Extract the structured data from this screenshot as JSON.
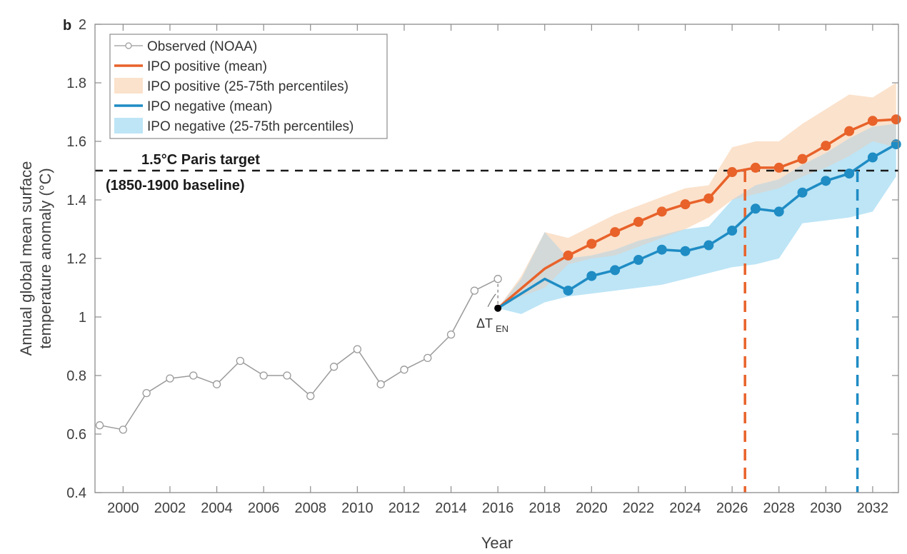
{
  "chart_data": {
    "type": "line",
    "panel_label": "b",
    "title": "",
    "xlabel": "Year",
    "ylabel_line1": "Annual global mean surface",
    "ylabel_line2": "temperature anomaly (°C)",
    "xlim": [
      1998.8,
      2033.1
    ],
    "ylim": [
      0.4,
      2.0
    ],
    "grid": false,
    "x_ticks": [
      2000,
      2002,
      2004,
      2006,
      2008,
      2010,
      2012,
      2014,
      2016,
      2018,
      2020,
      2022,
      2024,
      2026,
      2028,
      2030,
      2032
    ],
    "x_tick_labels": [
      "2000",
      "2002",
      "2004",
      "2006",
      "2008",
      "2010",
      "2012",
      "2014",
      "2016",
      "2018",
      "2020",
      "2022",
      "2024",
      "2026",
      "2028",
      "2030",
      "2032"
    ],
    "y_ticks": [
      0.4,
      0.6,
      0.8,
      1.0,
      1.2,
      1.4,
      1.6,
      1.8,
      2.0
    ],
    "y_tick_labels": [
      "0.4",
      "0.6",
      "0.8",
      "1",
      "1.2",
      "1.4",
      "1.6",
      "1.8",
      "2"
    ],
    "legend_position": "top-left",
    "legend": [
      {
        "label": "Observed (NOAA)",
        "kind": "line-marker",
        "color": "#9a9a9a"
      },
      {
        "label": "IPO positive (mean)",
        "kind": "line",
        "color": "#e8622a"
      },
      {
        "label": "IPO positive (25-75th percentiles)",
        "kind": "patch",
        "color": "#fbe2cc"
      },
      {
        "label": "IPO negative (mean)",
        "kind": "line",
        "color": "#1f8cc4"
      },
      {
        "label": "IPO negative (25-75th percentiles)",
        "kind": "patch",
        "color": "#bde5f6"
      }
    ],
    "colors": {
      "observed": "#9a9a9a",
      "positive_mean": "#e8622a",
      "positive_band": "#fbe2cc",
      "negative_mean": "#1f8cc4",
      "negative_band": "#bde5f6",
      "overlap_band": "#d5d7d5",
      "target_line": "#1a1a1a"
    },
    "observed": {
      "name": "Observed (NOAA)",
      "x": [
        1999,
        2000,
        2001,
        2002,
        2003,
        2004,
        2005,
        2006,
        2007,
        2008,
        2009,
        2010,
        2011,
        2012,
        2013,
        2014,
        2015,
        2016
      ],
      "y": [
        0.63,
        0.615,
        0.74,
        0.79,
        0.8,
        0.77,
        0.85,
        0.8,
        0.8,
        0.73,
        0.83,
        0.89,
        0.77,
        0.82,
        0.86,
        0.94,
        1.09,
        1.13
      ]
    },
    "start_point": {
      "x": 2016,
      "y": 1.03,
      "label": "ΔT",
      "label_sub": "EN"
    },
    "series": [
      {
        "name": "IPO positive (mean)",
        "x": [
          2016,
          2018,
          2019,
          2020,
          2021,
          2022,
          2023,
          2024,
          2025,
          2026,
          2027,
          2028,
          2029,
          2030,
          2031,
          2032,
          2033
        ],
        "y": [
          1.03,
          1.165,
          1.21,
          1.25,
          1.29,
          1.325,
          1.36,
          1.385,
          1.405,
          1.495,
          1.51,
          1.51,
          1.54,
          1.585,
          1.635,
          1.67,
          1.675
        ],
        "markers_from": 2019
      },
      {
        "name": "IPO negative (mean)",
        "x": [
          2016,
          2018,
          2019,
          2020,
          2021,
          2022,
          2023,
          2024,
          2025,
          2026,
          2027,
          2028,
          2029,
          2030,
          2031,
          2032,
          2033
        ],
        "y": [
          1.03,
          1.13,
          1.09,
          1.14,
          1.16,
          1.195,
          1.23,
          1.225,
          1.245,
          1.295,
          1.37,
          1.36,
          1.425,
          1.465,
          1.49,
          1.545,
          1.59
        ],
        "markers_from": 2019
      }
    ],
    "bands": [
      {
        "name": "IPO positive (25-75th percentiles)",
        "x": [
          2016,
          2017,
          2018,
          2019,
          2020,
          2021,
          2022,
          2023,
          2024,
          2025,
          2026,
          2027,
          2028,
          2029,
          2030,
          2031,
          2032,
          2033
        ],
        "upper": [
          1.03,
          1.14,
          1.29,
          1.27,
          1.31,
          1.35,
          1.38,
          1.41,
          1.44,
          1.45,
          1.58,
          1.6,
          1.6,
          1.66,
          1.71,
          1.76,
          1.75,
          1.8
        ],
        "lower": [
          1.03,
          1.07,
          1.1,
          1.18,
          1.2,
          1.21,
          1.24,
          1.27,
          1.3,
          1.34,
          1.4,
          1.42,
          1.44,
          1.48,
          1.51,
          1.55,
          1.6,
          1.58
        ]
      },
      {
        "name": "IPO negative (25-75th percentiles)",
        "x": [
          2016,
          2017,
          2018,
          2019,
          2020,
          2021,
          2022,
          2023,
          2024,
          2025,
          2026,
          2027,
          2028,
          2029,
          2030,
          2031,
          2032,
          2033
        ],
        "upper": [
          1.03,
          1.13,
          1.29,
          1.2,
          1.21,
          1.23,
          1.26,
          1.28,
          1.3,
          1.31,
          1.4,
          1.45,
          1.47,
          1.52,
          1.56,
          1.61,
          1.65,
          1.66
        ],
        "lower": [
          1.03,
          1.01,
          1.05,
          1.07,
          1.08,
          1.09,
          1.1,
          1.11,
          1.13,
          1.15,
          1.17,
          1.18,
          1.2,
          1.32,
          1.33,
          1.34,
          1.36,
          1.48
        ]
      }
    ],
    "target": {
      "value": 1.5,
      "label_line1": "1.5°C Paris target",
      "label_line2": "(1850-1900 baseline)"
    },
    "crossings": [
      {
        "name": "IPO positive crossing",
        "x": 2026.55,
        "color": "#e8622a"
      },
      {
        "name": "IPO negative crossing",
        "x": 2031.35,
        "color": "#1f8cc4"
      }
    ]
  }
}
